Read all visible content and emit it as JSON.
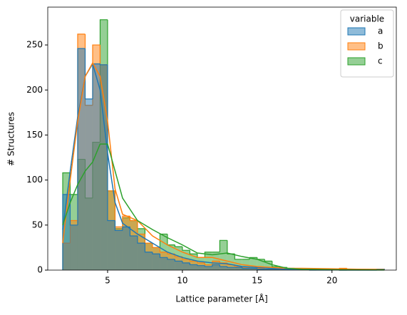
{
  "chart_data": {
    "type": "histogram",
    "xlabel": "Lattice parameter [Å]",
    "ylabel": "# Structures",
    "legend_title": "variable",
    "legend": "upper right",
    "grid": false,
    "xlim": [
      1.0,
      24.3
    ],
    "ylim": [
      0,
      292
    ],
    "xticks": [
      5,
      10,
      15,
      20
    ],
    "yticks": [
      0,
      50,
      100,
      150,
      200,
      250
    ],
    "bins": [
      2,
      2.5,
      3,
      3.5,
      4,
      4.5,
      5,
      5.5,
      6,
      6.5,
      7,
      7.5,
      8,
      8.5,
      9,
      9.5,
      10,
      10.5,
      11,
      11.5,
      12,
      12.5,
      13,
      13.5,
      14,
      14.5,
      15,
      15.5,
      16,
      16.5,
      17,
      17.5,
      18,
      18.5,
      19,
      19.5,
      20,
      20.5,
      21,
      21.5,
      22,
      22.5,
      23,
      23.5
    ],
    "kde_x": [
      2,
      2.5,
      3,
      3.5,
      4,
      4.5,
      5,
      5.5,
      6,
      7,
      8,
      9,
      10,
      11,
      12,
      13,
      14,
      15,
      16,
      17,
      18,
      20,
      23.5
    ],
    "series": [
      {
        "name": "a",
        "color": "#1f77b4",
        "values": [
          84,
          50,
          246,
          190,
          229,
          228,
          55,
          44,
          48,
          38,
          30,
          20,
          18,
          14,
          12,
          10,
          8,
          6,
          5,
          4,
          6,
          4,
          3,
          3,
          2,
          2,
          1,
          1,
          1,
          1,
          1,
          1,
          1,
          0,
          0,
          0,
          1,
          0,
          0,
          0,
          0,
          0,
          1
        ],
        "kde": [
          45,
          110,
          170,
          215,
          229,
          200,
          130,
          75,
          52,
          40,
          30,
          20,
          14,
          10,
          8,
          7,
          4,
          3,
          2,
          1,
          1,
          0.5,
          0.2
        ]
      },
      {
        "name": "b",
        "color": "#ff7f0e",
        "values": [
          30,
          55,
          262,
          183,
          250,
          228,
          88,
          48,
          60,
          55,
          40,
          30,
          25,
          20,
          18,
          15,
          12,
          10,
          8,
          6,
          10,
          8,
          6,
          4,
          3,
          2,
          2,
          1,
          1,
          1,
          1,
          1,
          1,
          1,
          1,
          1,
          1,
          2,
          1,
          1,
          1,
          1,
          1
        ],
        "kde": [
          30,
          100,
          165,
          215,
          230,
          215,
          165,
          90,
          62,
          55,
          38,
          28,
          20,
          14,
          14,
          10,
          6,
          4,
          3,
          2,
          2,
          1.5,
          0.5
        ]
      },
      {
        "name": "c",
        "color": "#2ca02c",
        "values": [
          108,
          84,
          123,
          80,
          142,
          278,
          88,
          46,
          58,
          55,
          46,
          30,
          25,
          40,
          28,
          26,
          22,
          18,
          14,
          20,
          20,
          33,
          18,
          12,
          12,
          14,
          12,
          10,
          4,
          3,
          2,
          1,
          1,
          1,
          1,
          1,
          1,
          0,
          0,
          0,
          0,
          0,
          0
        ],
        "kde": [
          50,
          75,
          95,
          110,
          120,
          140,
          140,
          110,
          80,
          55,
          45,
          36,
          28,
          19,
          17,
          19,
          15,
          12,
          6,
          2,
          1,
          0.5,
          0.2
        ]
      }
    ]
  }
}
